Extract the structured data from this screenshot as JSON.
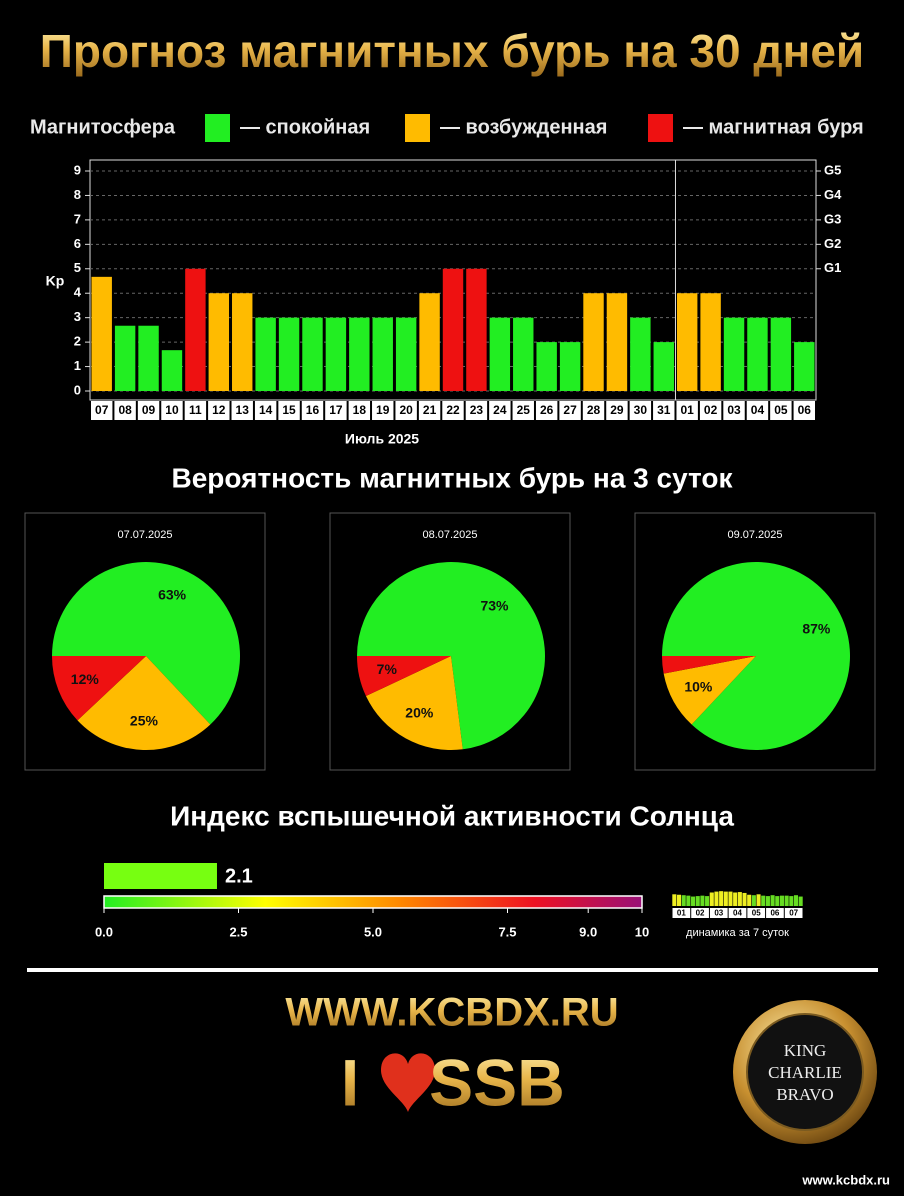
{
  "header": {
    "title": "Прогноз магнитных бурь на 30 дней"
  },
  "legend": {
    "title": "Магнитосфера",
    "items": [
      {
        "label": "— спокойная",
        "color": "#22ee22"
      },
      {
        "label": "— возбужденная",
        "color": "#ffbb00"
      },
      {
        "label": "— магнитная буря",
        "color": "#ee1111"
      }
    ]
  },
  "chart_data": [
    {
      "type": "bar",
      "ylabel": "Kp",
      "xlabel": "Июль 2025",
      "categories": [
        "07",
        "08",
        "09",
        "10",
        "11",
        "12",
        "13",
        "14",
        "15",
        "16",
        "17",
        "18",
        "19",
        "20",
        "21",
        "22",
        "23",
        "24",
        "25",
        "26",
        "27",
        "28",
        "29",
        "30",
        "31",
        "01",
        "02",
        "03",
        "04",
        "05",
        "06"
      ],
      "values": [
        4.67,
        2.67,
        2.67,
        1.67,
        5,
        4,
        4,
        3,
        3,
        3,
        3,
        3,
        3,
        3,
        4,
        5,
        5,
        3,
        3,
        2,
        2,
        4,
        4,
        3,
        2,
        4,
        4,
        3,
        3,
        3,
        2
      ],
      "colors": [
        "#ffbb00",
        "#22ee22",
        "#22ee22",
        "#22ee22",
        "#ee1111",
        "#ffbb00",
        "#ffbb00",
        "#22ee22",
        "#22ee22",
        "#22ee22",
        "#22ee22",
        "#22ee22",
        "#22ee22",
        "#22ee22",
        "#ffbb00",
        "#ee1111",
        "#ee1111",
        "#22ee22",
        "#22ee22",
        "#22ee22",
        "#22ee22",
        "#ffbb00",
        "#ffbb00",
        "#22ee22",
        "#22ee22",
        "#ffbb00",
        "#ffbb00",
        "#22ee22",
        "#22ee22",
        "#22ee22",
        "#22ee22"
      ],
      "ylim": [
        0,
        9
      ],
      "yticks": [
        0,
        1,
        2,
        3,
        4,
        5,
        6,
        7,
        8,
        9
      ],
      "y2lim": [
        0,
        9
      ],
      "y2ticks": [
        {
          "value": 5,
          "label": "G1"
        },
        {
          "value": 6,
          "label": "G2"
        },
        {
          "value": 7,
          "label": "G3"
        },
        {
          "value": 8,
          "label": "G4"
        },
        {
          "value": 9,
          "label": "G5"
        }
      ],
      "grid": true
    },
    {
      "type": "pie",
      "supertitle": "Вероятность магнитных бурь на 3 суток",
      "title": "07.07.2025",
      "values": [
        63,
        25,
        12
      ],
      "value_labels": [
        "63%",
        "25%",
        "12%"
      ],
      "colors": [
        "#22ee22",
        "#ffbb00",
        "#ee1111"
      ]
    },
    {
      "type": "pie",
      "title": "08.07.2025",
      "values": [
        73,
        20,
        7
      ],
      "value_labels": [
        "73%",
        "20%",
        "7%"
      ],
      "colors": [
        "#22ee22",
        "#ffbb00",
        "#ee1111"
      ]
    },
    {
      "type": "pie",
      "title": "09.07.2025",
      "values": [
        87,
        10,
        3
      ],
      "value_labels": [
        "87%",
        "10%",
        null
      ],
      "colors": [
        "#22ee22",
        "#ffbb00",
        "#ee1111"
      ]
    },
    {
      "type": "gauge",
      "title": "Индекс вспышечной активности Солнца",
      "value": 2.1,
      "color": "#77ff11",
      "xlim": [
        0,
        10
      ],
      "xticks": [
        {
          "value": 0,
          "label": "0.0"
        },
        {
          "value": 2.5,
          "label": "2.5"
        },
        {
          "value": 5,
          "label": "5.0"
        },
        {
          "value": 7.5,
          "label": "7.5"
        },
        {
          "value": 9,
          "label": "9.0"
        },
        10
      ]
    },
    {
      "type": "mini-bar",
      "xlabel": "динамика за 7 суток",
      "categories": [
        "01",
        "02",
        "03",
        "04",
        "05",
        "06",
        "07"
      ],
      "values": [
        [
          2.6,
          2.5,
          2.4,
          2.3
        ],
        [
          2.1,
          2.2,
          2.3,
          2.2
        ],
        [
          3.0,
          3.2,
          3.3,
          3.2
        ],
        [
          3.2,
          3.0,
          3.1,
          2.9
        ],
        [
          2.5,
          2.4,
          2.6,
          2.3
        ],
        [
          2.2,
          2.4,
          2.2,
          2.3
        ],
        [
          2.3,
          2.2,
          2.4,
          2.1
        ]
      ],
      "ylim": [
        0,
        4
      ]
    }
  ],
  "footer": {
    "site": "WWW.KCBDX.RU",
    "slogan_left": "I",
    "slogan_right": "SSB",
    "badge": [
      "KING",
      "CHARLIE",
      "BRAVO"
    ],
    "url": "www.kcbdx.ru"
  }
}
